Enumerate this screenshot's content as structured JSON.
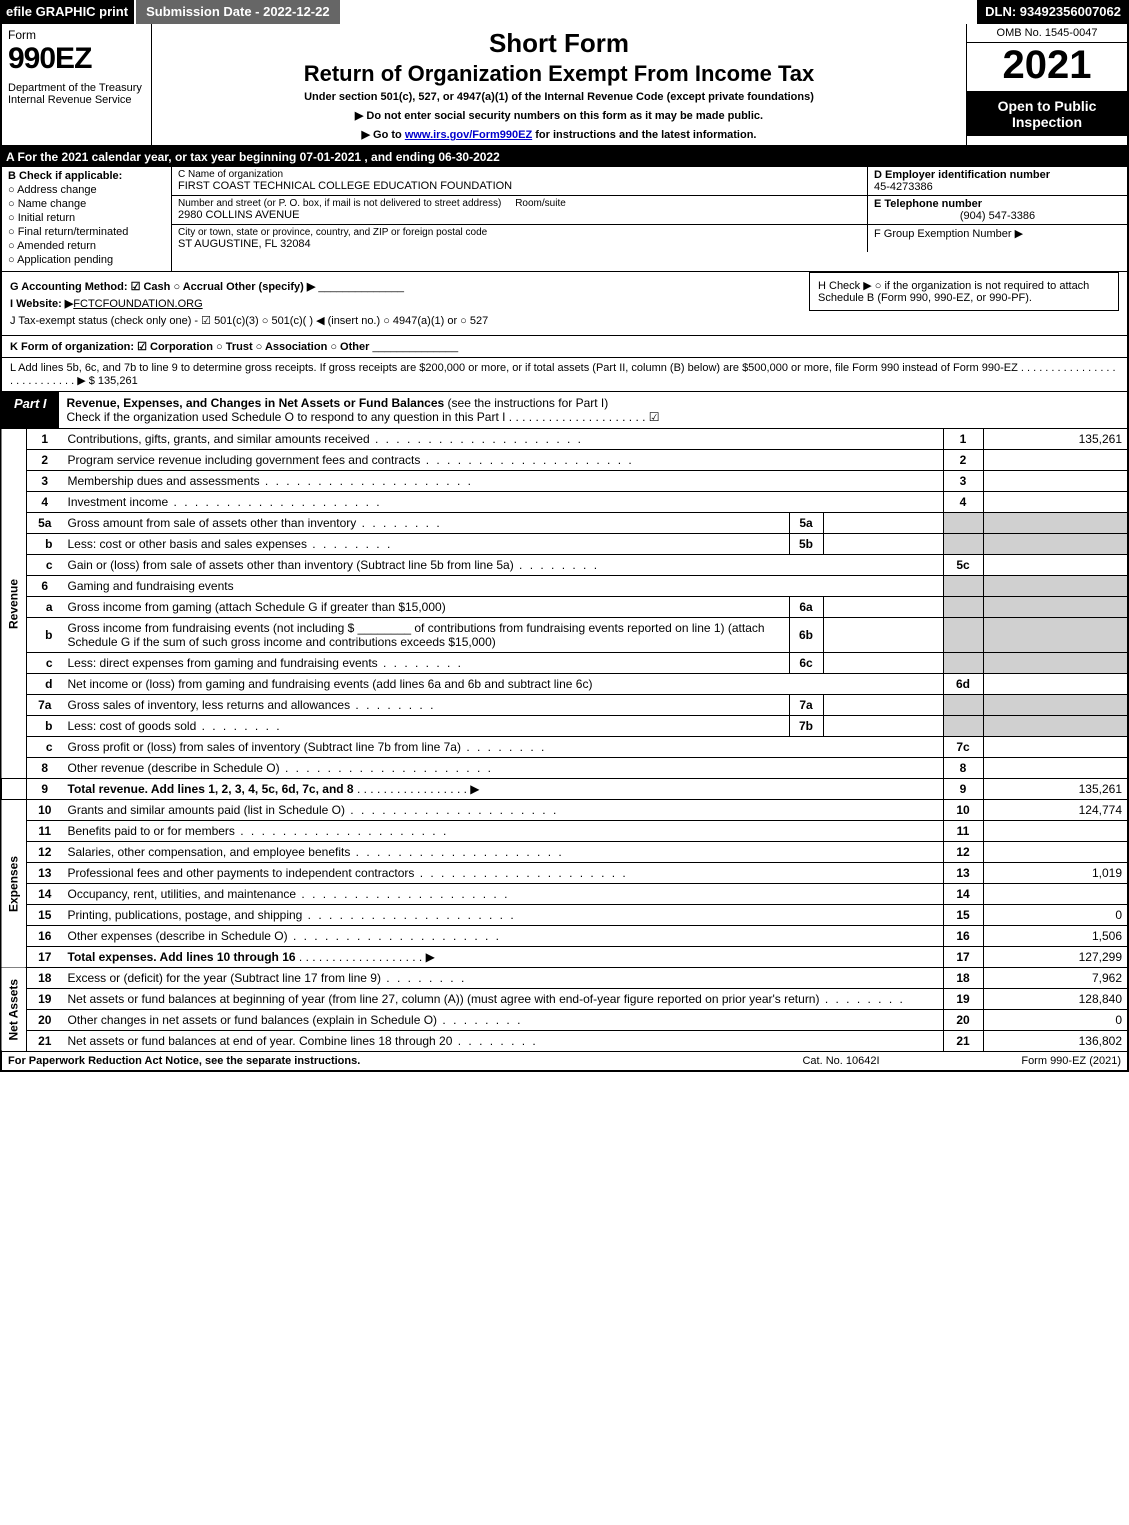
{
  "top": {
    "efile": "efile GRAPHIC print",
    "submission": "Submission Date - 2022-12-22",
    "dln": "DLN: 93492356007062"
  },
  "header": {
    "form_word": "Form",
    "form_num": "990EZ",
    "dept": "Department of the Treasury\nInternal Revenue Service",
    "short": "Short Form",
    "return": "Return of Organization Exempt From Income Tax",
    "under": "Under section 501(c), 527, or 4947(a)(1) of the Internal Revenue Code (except private foundations)",
    "dne": "▶ Do not enter social security numbers on this form as it may be made public.",
    "goto_pre": "▶ Go to ",
    "goto_link": "www.irs.gov/Form990EZ",
    "goto_post": " for instructions and the latest information.",
    "omb": "OMB No. 1545-0047",
    "year": "2021",
    "open": "Open to Public Inspection"
  },
  "row_a": "A  For the 2021 calendar year, or tax year beginning 07-01-2021 , and ending 06-30-2022",
  "b": {
    "head": "B  Check if applicable:",
    "items": [
      "Address change",
      "Name change",
      "Initial return",
      "Final return/terminated",
      "Amended return",
      "Application pending"
    ]
  },
  "c": {
    "c_label": "C Name of organization",
    "org_name": "FIRST COAST TECHNICAL COLLEGE EDUCATION FOUNDATION",
    "street_label": "Number and street (or P. O. box, if mail is not delivered to street address)",
    "room_label": "Room/suite",
    "street": "2980 COLLINS AVENUE",
    "city_label": "City or town, state or province, country, and ZIP or foreign postal code",
    "city": "ST AUGUSTINE, FL  32084"
  },
  "d": {
    "label": "D Employer identification number",
    "value": "45-4273386"
  },
  "e": {
    "label": "E Telephone number",
    "value": "(904) 547-3386"
  },
  "f": {
    "label": "F Group Exemption Number   ▶"
  },
  "g": "G Accounting Method:   ☑ Cash  ○ Accrual   Other (specify) ▶",
  "h": "H  Check ▶  ○  if the organization is not required to attach Schedule B (Form 990, 990-EZ, or 990-PF).",
  "i_pre": "I Website: ▶",
  "i_val": "FCTCFOUNDATION.ORG",
  "j": "J Tax-exempt status (check only one) -  ☑ 501(c)(3)  ○ 501(c)(  ) ◀ (insert no.)  ○ 4947(a)(1) or  ○ 527",
  "k": "K Form of organization:   ☑ Corporation   ○ Trust   ○ Association   ○ Other",
  "l": "L Add lines 5b, 6c, and 7b to line 9 to determine gross receipts. If gross receipts are $200,000 or more, or if total assets (Part II, column (B) below) are $500,000 or more, file Form 990 instead of Form 990-EZ  .  .  .  .  .  .  .  .  .  .  .  .  .  .  .  .  .  .  .  .  .  .  .  .  .  .  .  ▶ $ 135,261",
  "part1": {
    "tab": "Part I",
    "title_b": "Revenue, Expenses, and Changes in Net Assets or Fund Balances",
    "title_rest": " (see the instructions for Part I)",
    "sub": "Check if the organization used Schedule O to respond to any question in this Part I .  .  .  .  .  .  .  .  .  .  .  .  .  .  .  .  .  .  .  .  .  ☑"
  },
  "sections": {
    "revenue": "Revenue",
    "expenses": "Expenses",
    "netassets": "Net Assets"
  },
  "lines": {
    "l1": {
      "n": "1",
      "d": "Contributions, gifts, grants, and similar amounts received",
      "rn": "1",
      "rv": "135,261"
    },
    "l2": {
      "n": "2",
      "d": "Program service revenue including government fees and contracts",
      "rn": "2",
      "rv": ""
    },
    "l3": {
      "n": "3",
      "d": "Membership dues and assessments",
      "rn": "3",
      "rv": ""
    },
    "l4": {
      "n": "4",
      "d": "Investment income",
      "rn": "4",
      "rv": ""
    },
    "l5a": {
      "n": "5a",
      "d": "Gross amount from sale of assets other than inventory",
      "mn": "5a"
    },
    "l5b": {
      "n": "b",
      "d": "Less: cost or other basis and sales expenses",
      "mn": "5b"
    },
    "l5c": {
      "n": "c",
      "d": "Gain or (loss) from sale of assets other than inventory (Subtract line 5b from line 5a)",
      "rn": "5c",
      "rv": ""
    },
    "l6": {
      "n": "6",
      "d": "Gaming and fundraising events"
    },
    "l6a": {
      "n": "a",
      "d": "Gross income from gaming (attach Schedule G if greater than $15,000)",
      "mn": "6a"
    },
    "l6b": {
      "n": "b",
      "d_pre": "Gross income from fundraising events (not including $",
      "d_mid": "of contributions from fundraising events reported on line 1) (attach Schedule G if the sum of such gross income and contributions exceeds $15,000)",
      "mn": "6b"
    },
    "l6c": {
      "n": "c",
      "d": "Less: direct expenses from gaming and fundraising events",
      "mn": "6c"
    },
    "l6d": {
      "n": "d",
      "d": "Net income or (loss) from gaming and fundraising events (add lines 6a and 6b and subtract line 6c)",
      "rn": "6d",
      "rv": ""
    },
    "l7a": {
      "n": "7a",
      "d": "Gross sales of inventory, less returns and allowances",
      "mn": "7a"
    },
    "l7b": {
      "n": "b",
      "d": "Less: cost of goods sold",
      "mn": "7b"
    },
    "l7c": {
      "n": "c",
      "d": "Gross profit or (loss) from sales of inventory (Subtract line 7b from line 7a)",
      "rn": "7c",
      "rv": ""
    },
    "l8": {
      "n": "8",
      "d": "Other revenue (describe in Schedule O)",
      "rn": "8",
      "rv": ""
    },
    "l9": {
      "n": "9",
      "d": "Total revenue. Add lines 1, 2, 3, 4, 5c, 6d, 7c, and 8",
      "rn": "9",
      "rv": "135,261"
    },
    "l10": {
      "n": "10",
      "d": "Grants and similar amounts paid (list in Schedule O)",
      "rn": "10",
      "rv": "124,774"
    },
    "l11": {
      "n": "11",
      "d": "Benefits paid to or for members",
      "rn": "11",
      "rv": ""
    },
    "l12": {
      "n": "12",
      "d": "Salaries, other compensation, and employee benefits",
      "rn": "12",
      "rv": ""
    },
    "l13": {
      "n": "13",
      "d": "Professional fees and other payments to independent contractors",
      "rn": "13",
      "rv": "1,019"
    },
    "l14": {
      "n": "14",
      "d": "Occupancy, rent, utilities, and maintenance",
      "rn": "14",
      "rv": ""
    },
    "l15": {
      "n": "15",
      "d": "Printing, publications, postage, and shipping",
      "rn": "15",
      "rv": "0"
    },
    "l16": {
      "n": "16",
      "d": "Other expenses (describe in Schedule O)",
      "rn": "16",
      "rv": "1,506"
    },
    "l17": {
      "n": "17",
      "d": "Total expenses. Add lines 10 through 16",
      "rn": "17",
      "rv": "127,299"
    },
    "l18": {
      "n": "18",
      "d": "Excess or (deficit) for the year (Subtract line 17 from line 9)",
      "rn": "18",
      "rv": "7,962"
    },
    "l19": {
      "n": "19",
      "d": "Net assets or fund balances at beginning of year (from line 27, column (A)) (must agree with end-of-year figure reported on prior year's return)",
      "rn": "19",
      "rv": "128,840"
    },
    "l20": {
      "n": "20",
      "d": "Other changes in net assets or fund balances (explain in Schedule O)",
      "rn": "20",
      "rv": "0"
    },
    "l21": {
      "n": "21",
      "d": "Net assets or fund balances at end of year. Combine lines 18 through 20",
      "rn": "21",
      "rv": "136,802"
    }
  },
  "footer": {
    "left": "For Paperwork Reduction Act Notice, see the separate instructions.",
    "center": "Cat. No. 10642I",
    "right": "Form 990-EZ (2021)"
  }
}
